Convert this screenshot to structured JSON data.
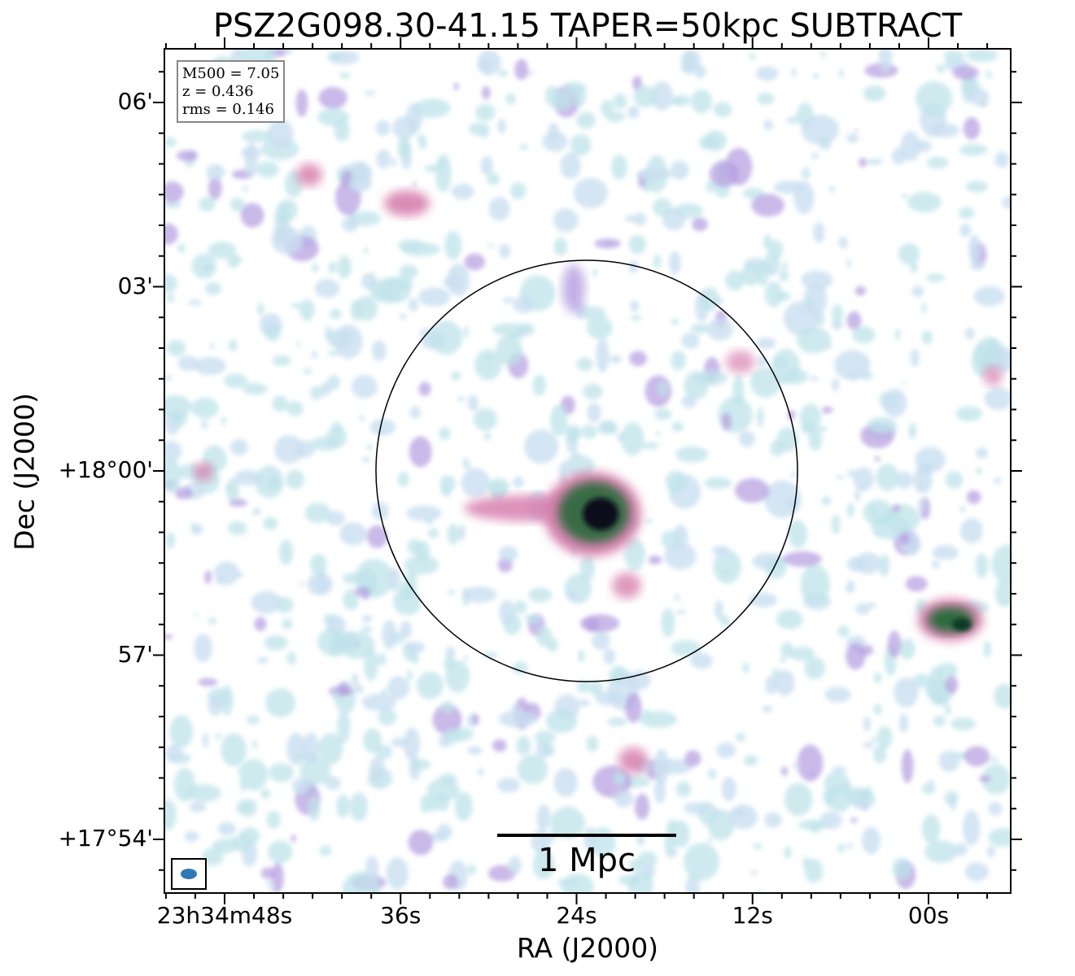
{
  "chart_data": {
    "type": "heatmap",
    "title": "PSZ2G098.30-41.15 TAPER=50kpc SUBTRACT",
    "xlabel": "RA (J2000)",
    "ylabel": "Dec (J2000)",
    "x_ticks": [
      "23h34m48s",
      "36s",
      "24s",
      "12s",
      "00s"
    ],
    "y_ticks": [
      "06'",
      "03'",
      "+18°00'",
      "57'",
      "+17°54'"
    ],
    "x_tick_values_s": [
      48,
      36,
      24,
      12,
      0
    ],
    "y_tick_values_arcmin": [
      6,
      3,
      0,
      -3,
      -6
    ],
    "annotations": {
      "M500": "M500 = 7.05",
      "z": "z = 0.436",
      "rms": "rms = 0.146"
    },
    "scalebar": "1 Mpc",
    "circle": "black circle centred on cluster",
    "colormap": "cubehelix-like (white → light blue → violet → pink → green → black)",
    "sources": [
      {
        "name": "central diffuse emission",
        "intensity": 1.0
      },
      {
        "name": "compact source east",
        "intensity": 0.85
      },
      {
        "name": "northwest blob",
        "intensity": 0.45
      },
      {
        "name": "south blob",
        "intensity": 0.4
      }
    ]
  },
  "colors": {
    "low": "#bfe3ea",
    "mid": "#b49be0",
    "pink": "#d77fae",
    "high": "#2f6a3e",
    "peak": "#0a0a1a",
    "beam": "#2f78b4"
  }
}
